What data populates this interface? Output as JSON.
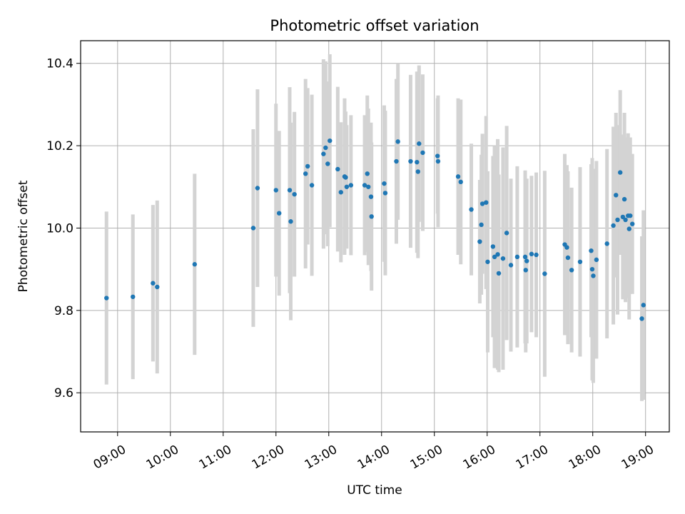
{
  "chart_data": {
    "type": "scatter",
    "title": "Photometric offset variation",
    "xlabel": "UTC time",
    "ylabel": "Photometric offset",
    "x_unit": "hours UTC",
    "xlim": [
      8.3,
      19.45
    ],
    "ylim": [
      9.505,
      10.455
    ],
    "x_ticks": [
      9,
      10,
      11,
      12,
      13,
      14,
      15,
      16,
      17,
      18,
      19
    ],
    "x_tick_labels": [
      "09:00",
      "10:00",
      "11:00",
      "12:00",
      "13:00",
      "14:00",
      "15:00",
      "16:00",
      "17:00",
      "18:00",
      "19:00"
    ],
    "y_ticks": [
      9.6,
      9.8,
      10.0,
      10.2,
      10.4
    ],
    "y_tick_labels": [
      "9.6",
      "9.8",
      "10.0",
      "10.2",
      "10.4"
    ],
    "grid": true,
    "colors": {
      "point": "#1f77b4",
      "errorbar": "#d3d3d3",
      "grid": "#b0b0b0"
    },
    "series": [
      {
        "marker": "dot",
        "points": [
          [
            8.79,
            9.83,
            0.21
          ],
          [
            9.29,
            9.833,
            0.2
          ],
          [
            9.67,
            9.866,
            0.19
          ],
          [
            9.75,
            9.857,
            0.21
          ],
          [
            10.46,
            9.912,
            0.22
          ],
          [
            11.57,
            10.0,
            0.24
          ],
          [
            11.65,
            10.097,
            0.24
          ],
          [
            12.0,
            10.092,
            0.21
          ],
          [
            12.06,
            10.036,
            0.2
          ],
          [
            12.26,
            10.092,
            0.25
          ],
          [
            12.28,
            10.016,
            0.24
          ],
          [
            12.35,
            10.082,
            0.2
          ],
          [
            12.56,
            10.132,
            0.23
          ],
          [
            12.6,
            10.15,
            0.19
          ],
          [
            12.68,
            10.104,
            0.22
          ],
          [
            12.9,
            10.18,
            0.23
          ],
          [
            12.94,
            10.195,
            0.21
          ],
          [
            12.98,
            10.156,
            0.2
          ],
          [
            13.02,
            10.212,
            0.21
          ],
          [
            13.17,
            10.143,
            0.2
          ],
          [
            13.23,
            10.087,
            0.17
          ],
          [
            13.3,
            10.125,
            0.19
          ],
          [
            13.32,
            10.123,
            0.16
          ],
          [
            13.34,
            10.1,
            0.15
          ],
          [
            13.42,
            10.104,
            0.17
          ],
          [
            13.68,
            10.104,
            0.17
          ],
          [
            13.73,
            10.132,
            0.19
          ],
          [
            13.75,
            10.1,
            0.19
          ],
          [
            13.8,
            10.076,
            0.18
          ],
          [
            13.81,
            10.028,
            0.18
          ],
          [
            14.05,
            10.108,
            0.19
          ],
          [
            14.07,
            10.085,
            0.2
          ],
          [
            14.28,
            10.162,
            0.2
          ],
          [
            14.31,
            10.21,
            0.19
          ],
          [
            14.55,
            10.162,
            0.21
          ],
          [
            14.67,
            10.16,
            0.22
          ],
          [
            14.69,
            10.137,
            0.21
          ],
          [
            14.71,
            10.205,
            0.19
          ],
          [
            14.78,
            10.183,
            0.19
          ],
          [
            15.06,
            10.175,
            0.14
          ],
          [
            15.07,
            10.162,
            0.16
          ],
          [
            15.45,
            10.125,
            0.19
          ],
          [
            15.5,
            10.112,
            0.2
          ],
          [
            15.7,
            10.045,
            0.16
          ],
          [
            15.86,
            9.967,
            0.15
          ],
          [
            15.89,
            10.008,
            0.17
          ],
          [
            15.91,
            10.059,
            0.17
          ],
          [
            15.98,
            10.062,
            0.21
          ],
          [
            16.01,
            9.918,
            0.22
          ],
          [
            16.11,
            9.955,
            0.22
          ],
          [
            16.14,
            9.93,
            0.27
          ],
          [
            16.2,
            9.936,
            0.28
          ],
          [
            16.22,
            9.89,
            0.24
          ],
          [
            16.3,
            9.926,
            0.27
          ],
          [
            16.37,
            9.988,
            0.26
          ],
          [
            16.45,
            9.91,
            0.21
          ],
          [
            16.57,
            9.93,
            0.22
          ],
          [
            16.72,
            9.93,
            0.21
          ],
          [
            16.73,
            9.898,
            0.2
          ],
          [
            16.75,
            9.92,
            0.2
          ],
          [
            16.84,
            9.937,
            0.19
          ],
          [
            16.93,
            9.935,
            0.2
          ],
          [
            17.09,
            9.889,
            0.25
          ],
          [
            17.47,
            9.96,
            0.22
          ],
          [
            17.51,
            9.953,
            0.2
          ],
          [
            17.53,
            9.928,
            0.21
          ],
          [
            17.6,
            9.898,
            0.2
          ],
          [
            17.76,
            9.918,
            0.23
          ],
          [
            17.97,
            9.945,
            0.21
          ],
          [
            17.99,
            9.9,
            0.27
          ],
          [
            18.01,
            9.884,
            0.26
          ],
          [
            18.07,
            9.923,
            0.24
          ],
          [
            18.27,
            9.962,
            0.23
          ],
          [
            18.39,
            10.006,
            0.24
          ],
          [
            18.44,
            10.08,
            0.2
          ],
          [
            18.47,
            10.02,
            0.23
          ],
          [
            18.52,
            10.135,
            0.2
          ],
          [
            18.57,
            10.027,
            0.2
          ],
          [
            18.6,
            10.07,
            0.21
          ],
          [
            18.62,
            10.02,
            0.2
          ],
          [
            18.67,
            10.03,
            0.2
          ],
          [
            18.69,
            9.998,
            0.22
          ],
          [
            18.71,
            10.03,
            0.19
          ],
          [
            18.75,
            10.01,
            0.17
          ],
          [
            18.93,
            9.78,
            0.2
          ],
          [
            18.96,
            9.813,
            0.23
          ]
        ]
      }
    ]
  }
}
